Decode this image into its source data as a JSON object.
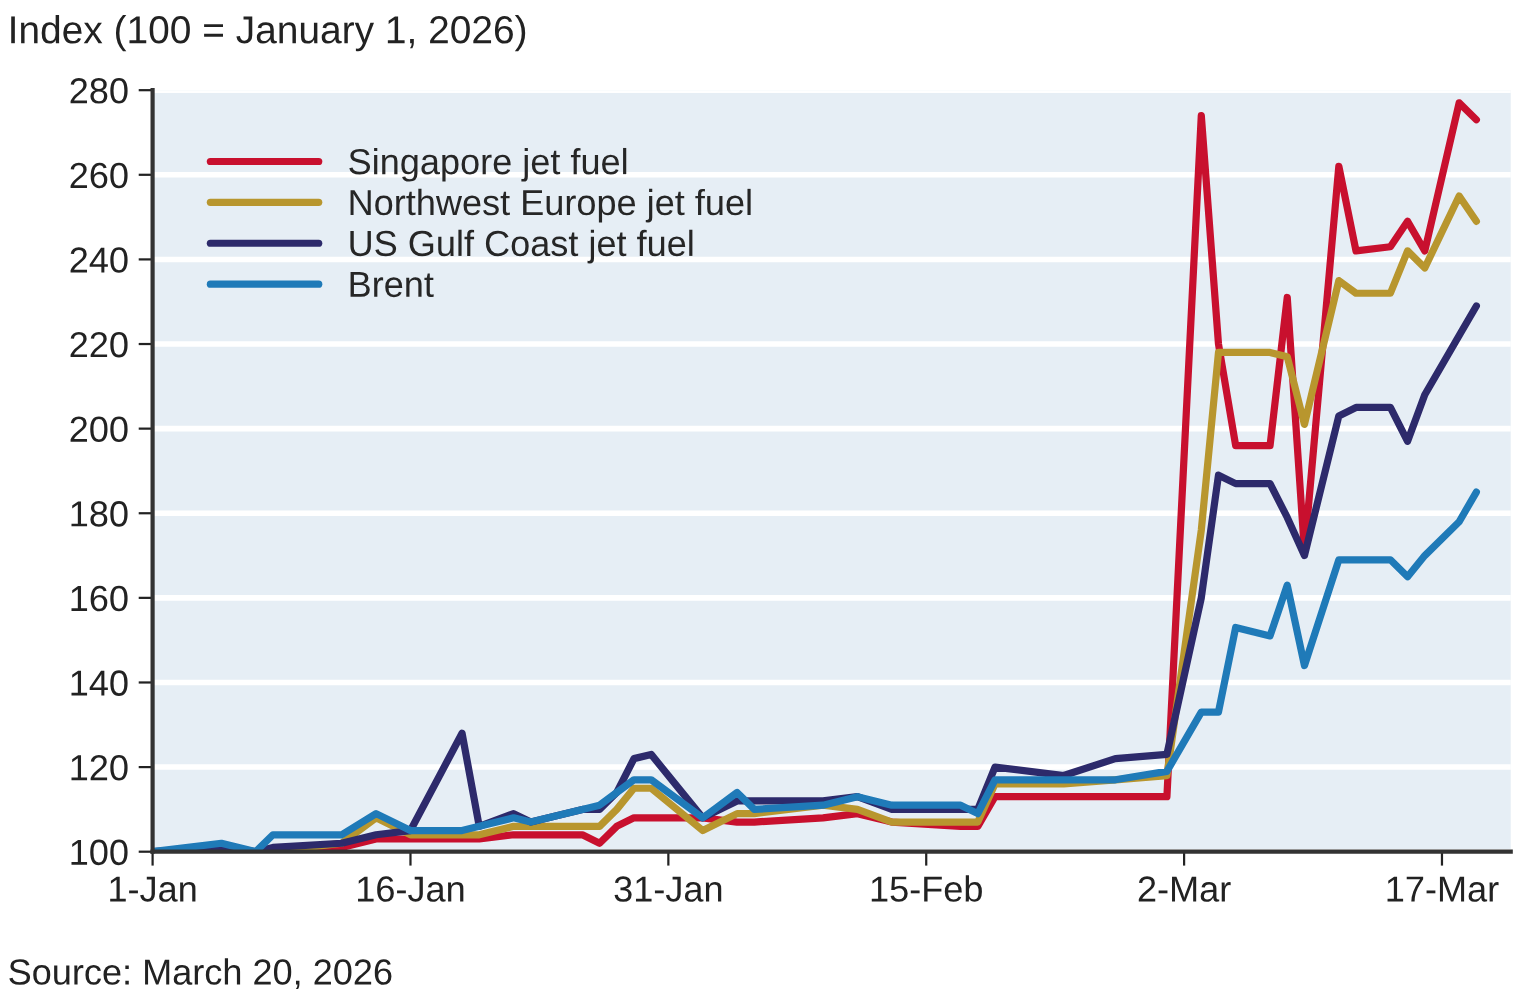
{
  "chart_data": {
    "type": "line",
    "title": "Index (100 = January 1, 2026)",
    "x": [
      "2026-01-01",
      "2026-01-05",
      "2026-01-07",
      "2026-01-08",
      "2026-01-12",
      "2026-01-14",
      "2026-01-16",
      "2026-01-19",
      "2026-01-20",
      "2026-01-22",
      "2026-01-23",
      "2026-01-26",
      "2026-01-27",
      "2026-01-28",
      "2026-01-29",
      "2026-01-30",
      "2026-02-02",
      "2026-02-04",
      "2026-02-05",
      "2026-02-09",
      "2026-02-11",
      "2026-02-13",
      "2026-02-17",
      "2026-02-18",
      "2026-02-19",
      "2026-02-23",
      "2026-02-26",
      "2026-03-01",
      "2026-03-03",
      "2026-03-04",
      "2026-03-05",
      "2026-03-07",
      "2026-03-08",
      "2026-03-09",
      "2026-03-11",
      "2026-03-12",
      "2026-03-14",
      "2026-03-15",
      "2026-03-16",
      "2026-03-18",
      "2026-03-19"
    ],
    "series": [
      {
        "name": "Singapore jet fuel",
        "color": "#c8102e",
        "values": [
          null,
          null,
          null,
          100,
          101,
          103,
          103,
          103,
          103,
          104,
          104,
          104,
          102,
          106,
          108,
          108,
          108,
          107,
          107,
          108,
          109,
          107,
          106,
          106,
          113,
          113,
          113,
          113,
          274,
          220,
          196,
          196,
          231,
          171,
          262,
          242,
          243,
          249,
          242,
          277,
          273
        ]
      },
      {
        "name": "Northwest Europe jet fuel",
        "color": "#b8962e",
        "values": [
          null,
          null,
          null,
          100,
          102,
          108,
          104,
          104,
          104,
          106,
          106,
          106,
          106,
          110,
          115,
          115,
          105,
          109,
          109,
          111,
          110,
          107,
          107,
          107,
          116,
          116,
          117,
          118,
          176,
          218,
          218,
          218,
          217,
          201,
          235,
          232,
          232,
          242,
          238,
          255,
          249
        ]
      },
      {
        "name": "US Gulf Coast jet fuel",
        "color": "#2d2a6b",
        "values": [
          100,
          101,
          100,
          101,
          102,
          104,
          105,
          128,
          106,
          109,
          107,
          110,
          110,
          114,
          122,
          123,
          108,
          112,
          112,
          112,
          113,
          110,
          110,
          110,
          120,
          118,
          122,
          123,
          160,
          189,
          187,
          187,
          179,
          170,
          203,
          205,
          205,
          197,
          208,
          222,
          229
        ]
      },
      {
        "name": "Brent",
        "color": "#1f7ab8",
        "values": [
          100,
          102,
          100,
          104,
          104,
          109,
          105,
          105,
          106,
          108,
          107,
          110,
          111,
          114,
          117,
          117,
          108,
          114,
          110,
          111,
          113,
          111,
          111,
          109,
          117,
          117,
          117,
          119,
          133,
          133,
          153,
          151,
          163,
          144,
          169,
          169,
          169,
          165,
          170,
          178,
          185
        ]
      }
    ],
    "xlim": [
      "2026-01-01",
      "2026-03-21"
    ],
    "xticks": [
      {
        "value": "2026-01-01",
        "label": "1-Jan"
      },
      {
        "value": "2026-01-16",
        "label": "16-Jan"
      },
      {
        "value": "2026-01-31",
        "label": "31-Jan"
      },
      {
        "value": "2026-02-15",
        "label": "15-Feb"
      },
      {
        "value": "2026-03-02",
        "label": "2-Mar"
      },
      {
        "value": "2026-03-17",
        "label": "17-Mar"
      }
    ],
    "ylim": [
      100,
      280
    ],
    "yticks": [
      100,
      120,
      140,
      160,
      180,
      200,
      220,
      240,
      260,
      280
    ],
    "grid": "y",
    "legend": "top left",
    "marker": "none",
    "line_style": "solid",
    "annotations": [
      "Source: March 20, 2026"
    ]
  }
}
